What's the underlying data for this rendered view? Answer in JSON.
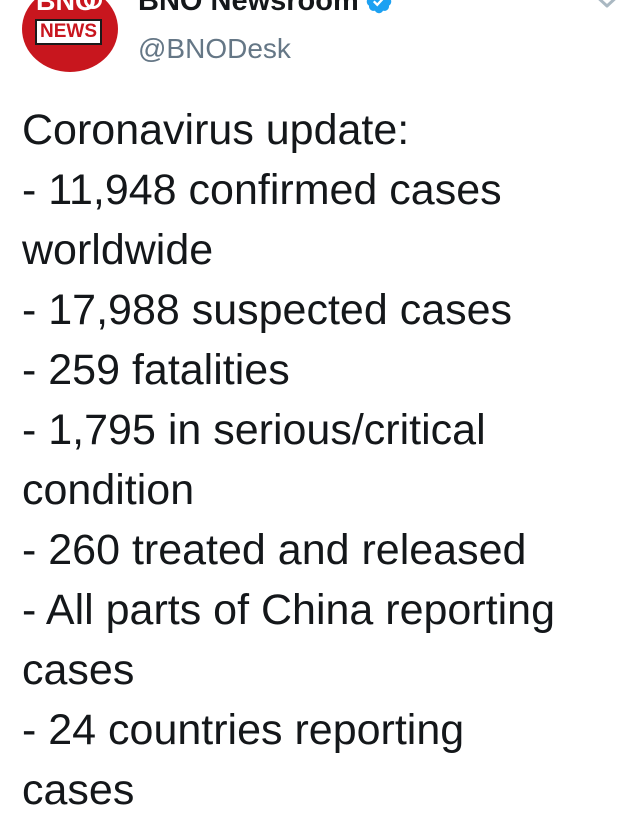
{
  "header": {
    "avatar_top": "BNO",
    "avatar_bottom": "NEWS",
    "display_name": "BNO Newsroom",
    "handle": "@BNODesk",
    "verified": true
  },
  "tweet": {
    "lines": [
      "Coronavirus update:",
      "- 11,948 confirmed cases",
      "worldwide",
      "- 17,988 suspected cases",
      "- 259 fatalities",
      "- 1,795 in serious/critical",
      "condition",
      "- 260 treated and released",
      "- All parts of China reporting",
      "cases",
      "- 24 countries reporting",
      "cases"
    ]
  },
  "colors": {
    "avatar_red": "#c8161e",
    "verified_blue": "#1da1f2",
    "handle_gray": "#657786",
    "text": "#14171a"
  }
}
